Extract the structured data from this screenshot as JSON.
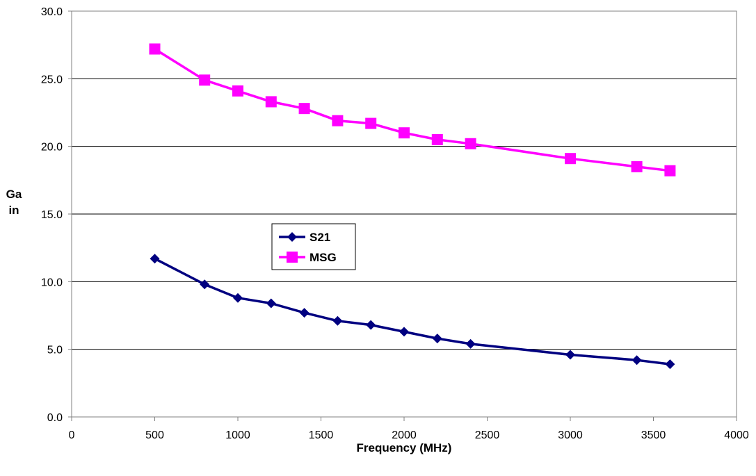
{
  "chart_data": {
    "type": "line",
    "title": "",
    "xlabel": "Frequency (MHz)",
    "ylabel_lines": [
      "Ga",
      "in"
    ],
    "xlim": [
      0,
      4000
    ],
    "ylim": [
      0,
      30
    ],
    "xticks": [
      0,
      500,
      1000,
      1500,
      2000,
      2500,
      3000,
      3500,
      4000
    ],
    "yticks": [
      0,
      5,
      10,
      15,
      20,
      25,
      30
    ],
    "ytick_labels": [
      "0.0",
      "5.0",
      "10.0",
      "15.0",
      "20.0",
      "25.0",
      "30.0"
    ],
    "grid": "horizontal",
    "legend_placement": "center-left",
    "series": [
      {
        "name": "S21",
        "color": "#000080",
        "marker": "diamond",
        "x": [
          500,
          800,
          1000,
          1200,
          1400,
          1600,
          1800,
          2000,
          2200,
          2400,
          3000,
          3400,
          3600
        ],
        "y": [
          11.7,
          9.8,
          8.8,
          8.4,
          7.7,
          7.1,
          6.8,
          6.3,
          5.8,
          5.4,
          4.6,
          4.2,
          3.9
        ]
      },
      {
        "name": "MSG",
        "color": "#FF00FF",
        "marker": "square",
        "x": [
          500,
          800,
          1000,
          1200,
          1400,
          1600,
          1800,
          2000,
          2200,
          2400,
          3000,
          3400,
          3600
        ],
        "y": [
          27.2,
          24.9,
          24.1,
          23.3,
          22.8,
          21.9,
          21.7,
          21.0,
          20.5,
          20.2,
          19.1,
          18.5,
          18.2
        ]
      }
    ]
  }
}
